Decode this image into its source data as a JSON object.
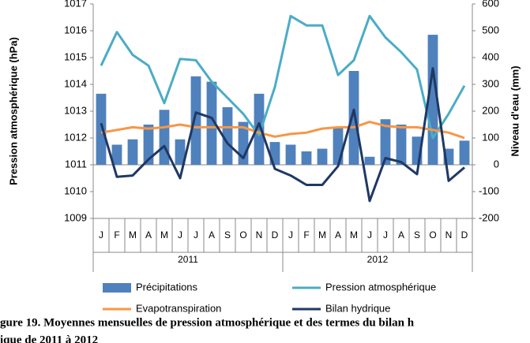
{
  "chart_data": {
    "type": "combo",
    "categories": [
      "J",
      "F",
      "M",
      "A",
      "M",
      "J",
      "J",
      "A",
      "S",
      "O",
      "N",
      "D",
      "J",
      "F",
      "M",
      "A",
      "M",
      "J",
      "J",
      "A",
      "S",
      "O",
      "N",
      "D"
    ],
    "years": [
      "2011",
      "2012"
    ],
    "y_label": "Pression atmosphérique (hPa)",
    "y2_label": "Niveau d'eau (mm)",
    "ylim": [
      1009,
      1017
    ],
    "yticks": [
      1009,
      1010,
      1011,
      1012,
      1013,
      1014,
      1015,
      1016,
      1017
    ],
    "y2lim": [
      -200,
      600
    ],
    "y2ticks": [
      -200,
      -100,
      0,
      100,
      200,
      300,
      400,
      500,
      600
    ],
    "series": [
      {
        "name": "Précipitations",
        "type": "bar",
        "axis": "y2",
        "color": "#4f81bd",
        "values": [
          265,
          75,
          95,
          150,
          205,
          95,
          330,
          310,
          215,
          160,
          265,
          85,
          75,
          50,
          60,
          140,
          350,
          30,
          170,
          150,
          105,
          485,
          60,
          90
        ]
      },
      {
        "name": "Pression atmosphérique",
        "type": "line",
        "color": "#4bacc6",
        "values": [
          1014.7,
          1015.95,
          1015.1,
          1014.7,
          1013.3,
          1014.95,
          1014.9,
          1014.1,
          1013.5,
          1012.9,
          1012.1,
          1013.9,
          1016.55,
          1016.2,
          1016.2,
          1014.35,
          1014.9,
          1016.55,
          1015.75,
          1015.2,
          1014.55,
          1012.0,
          1012.9,
          1013.95
        ]
      },
      {
        "name": "Evapotranspiration",
        "type": "line",
        "axis": "y2",
        "color": "#f79646",
        "values": [
          120,
          130,
          140,
          135,
          140,
          150,
          140,
          140,
          140,
          140,
          120,
          105,
          115,
          120,
          135,
          140,
          140,
          160,
          145,
          140,
          140,
          130,
          120,
          100
        ]
      },
      {
        "name": "Bilan hydrique",
        "type": "line",
        "axis": "y2",
        "color": "#1f3864",
        "values": [
          155,
          -45,
          -40,
          20,
          70,
          -50,
          195,
          175,
          80,
          25,
          155,
          -15,
          -40,
          -75,
          -75,
          -5,
          205,
          -135,
          25,
          10,
          -35,
          360,
          -60,
          -10
        ]
      }
    ],
    "caption": [
      "gure 19. Moyennes mensuelles de pression atmosphérique et des termes du bilan h",
      "ique de 2011 à 2012"
    ]
  }
}
